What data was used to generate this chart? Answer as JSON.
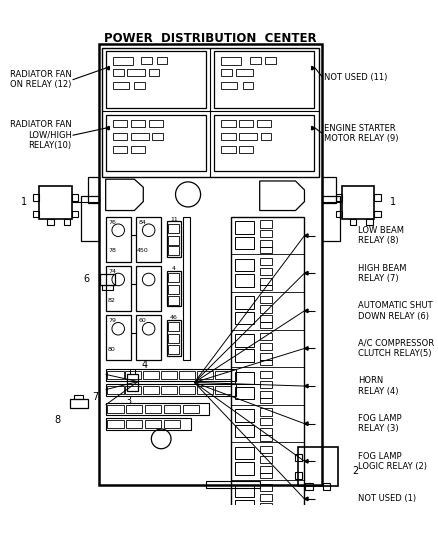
{
  "title": "POWER  DISTRIBUTION  CENTER",
  "background_color": "#ffffff",
  "line_color": "#000000",
  "title_fontsize": 8.5,
  "label_fontsize": 6.0,
  "small_label_fontsize": 6.5,
  "labels": {
    "radiator_fan_on": "RADIATOR FAN\nON RELAY (12)",
    "radiator_fan_low": "RADIATOR FAN\nLOW/HIGH\nRELAY(10)",
    "not_used_11": "NOT USED (11)",
    "engine_starter": "ENGINE STARTER\nMOTOR RELAY (9)",
    "label_1": "1",
    "label_2": "2",
    "label_3": "3",
    "label_4": "4",
    "label_6": "6",
    "label_7": "7",
    "label_8": "8",
    "low_beam": "LOW BEAM\nRELAY (8)",
    "high_beam": "HIGH BEAM\nRELAY (7)",
    "auto_shut": "AUTOMATIC SHUT\nDOWN RELAY (6)",
    "ac_comp": "A/C COMPRESSOR\nCLUTCH RELAY(5)",
    "horn": "HORN\nRELAY (4)",
    "fog_lamp": "FOG LAMP\nRELAY (3)",
    "fog_lamp_logic": "FOG LAMP\nLOGIC RELAY (2)",
    "not_used_1": "NOT USED (1)"
  }
}
